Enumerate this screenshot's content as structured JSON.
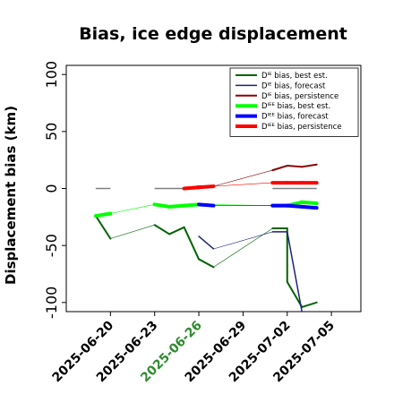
{
  "chart_data": {
    "type": "line",
    "title": "Bias, ice edge displacement",
    "xlabel": "",
    "ylabel": "Displacement bias (km)",
    "ylim": [
      -108,
      108
    ],
    "xlim": [
      "2025-06-17",
      "2025-07-07"
    ],
    "y_ticks": [
      100,
      50,
      0,
      -50,
      -100
    ],
    "x_ticks": [
      {
        "date": "2025-06-20",
        "label": "2025-06-20",
        "color": "#000000"
      },
      {
        "date": "2025-06-23",
        "label": "2025-06-23",
        "color": "#000000"
      },
      {
        "date": "2025-06-26",
        "label": "2025-06-26",
        "color": "#2e8b2e"
      },
      {
        "date": "2025-06-29",
        "label": "2025-06-29",
        "color": "#000000"
      },
      {
        "date": "2025-07-02",
        "label": "2025-07-02",
        "color": "#000000"
      },
      {
        "date": "2025-07-05",
        "label": "2025-07-05",
        "color": "#000000"
      }
    ],
    "legend_position": "top-right",
    "reference_segments": [
      {
        "x": [
          "2025-06-19",
          "2025-06-20"
        ],
        "y": [
          0,
          0
        ]
      },
      {
        "x": [
          "2025-06-23",
          "2025-06-26"
        ],
        "y": [
          0,
          0
        ]
      },
      {
        "x": [
          "2025-07-01",
          "2025-07-04"
        ],
        "y": [
          0,
          0
        ]
      }
    ],
    "series": [
      {
        "name": "Dᴵᴱ bias, best est.",
        "color": "#006400",
        "width": 2,
        "points": [
          [
            "2025-06-19",
            -24
          ],
          [
            "2025-06-20",
            -44
          ],
          [
            "2025-06-23",
            -32
          ],
          [
            "2025-06-24",
            -40
          ],
          [
            "2025-06-25",
            -34
          ],
          [
            "2025-06-26",
            -62
          ],
          [
            "2025-06-27",
            -69
          ],
          [
            "2025-07-01",
            -35
          ],
          [
            "2025-07-02",
            -35
          ],
          [
            "2025-07-02",
            -82
          ],
          [
            "2025-07-03",
            -104
          ],
          [
            "2025-07-04",
            -100
          ]
        ]
      },
      {
        "name": "Dᴵᴱ bias, forecast",
        "color": "#1a237e",
        "width": 1.5,
        "points": [
          [
            "2025-06-26",
            -42
          ],
          [
            "2025-06-27",
            -53
          ],
          [
            "2025-07-01",
            -38
          ],
          [
            "2025-07-02",
            -38
          ],
          [
            "2025-07-03",
            -108
          ]
        ]
      },
      {
        "name": "Dᴵᴱ bias, persistence",
        "color": "#8b0000",
        "width": 2,
        "points": [
          [
            "2025-06-25",
            0
          ],
          [
            "2025-06-26",
            2
          ],
          [
            "2025-06-27",
            2
          ],
          [
            "2025-07-01",
            16
          ],
          [
            "2025-07-02",
            20
          ],
          [
            "2025-07-03",
            19
          ],
          [
            "2025-07-04",
            21
          ]
        ]
      },
      {
        "name": "Dᴵᴱᴱ bias, best est.",
        "color": "#00ff00",
        "width": 4,
        "points": [
          [
            "2025-06-19",
            -24
          ],
          [
            "2025-06-20",
            -22
          ],
          [
            "2025-06-23",
            -14
          ],
          [
            "2025-06-24",
            -16
          ],
          [
            "2025-06-25",
            -15
          ],
          [
            "2025-06-26",
            -14
          ],
          [
            "2025-07-01",
            -15
          ],
          [
            "2025-07-02",
            -15
          ],
          [
            "2025-07-03",
            -12
          ],
          [
            "2025-07-04",
            -13
          ]
        ]
      },
      {
        "name": "Dᴵᴱᴱ bias, forecast",
        "color": "#0000ff",
        "width": 4,
        "points": [
          [
            "2025-06-26",
            -14
          ],
          [
            "2025-06-27",
            -15
          ],
          [
            "2025-07-01",
            -15
          ],
          [
            "2025-07-02",
            -15
          ],
          [
            "2025-07-03",
            -16
          ],
          [
            "2025-07-04",
            -17
          ]
        ]
      },
      {
        "name": "Dᴵᴱᴱ bias, persistence",
        "color": "#ff0000",
        "width": 4,
        "points": [
          [
            "2025-06-25",
            0
          ],
          [
            "2025-06-26",
            1
          ],
          [
            "2025-06-27",
            2
          ],
          [
            "2025-07-01",
            5
          ],
          [
            "2025-07-02",
            5
          ],
          [
            "2025-07-03",
            5
          ],
          [
            "2025-07-04",
            5
          ]
        ]
      }
    ]
  }
}
